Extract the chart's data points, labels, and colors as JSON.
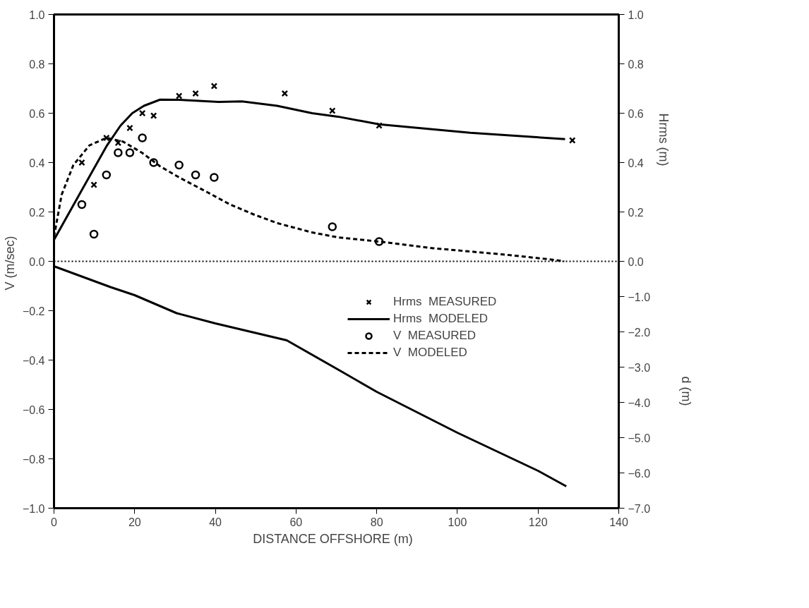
{
  "chart_data": {
    "type": "line",
    "xlabel": "DISTANCE  OFFSHORE  (m)",
    "ylabel": "V  (m/sec)",
    "y2label": "Hrms  (m)",
    "y3label": "d  (m)",
    "xlim": [
      0,
      140
    ],
    "xticks": [
      0,
      20,
      40,
      60,
      80,
      100,
      120,
      140
    ],
    "ylim": [
      -1,
      1
    ],
    "yticks": [
      {
        "value": -1,
        "label": "−1.0"
      },
      {
        "value": -0.8,
        "label": "−0.8"
      },
      {
        "value": -0.6,
        "label": "−0.6"
      },
      {
        "value": -0.4,
        "label": "−0.4"
      },
      {
        "value": -0.2,
        "label": "−0.2"
      },
      {
        "value": 0,
        "label": "0.0"
      },
      {
        "value": 0.2,
        "label": "0.2"
      },
      {
        "value": 0.4,
        "label": "0.4"
      },
      {
        "value": 0.6,
        "label": "0.6"
      },
      {
        "value": 0.8,
        "label": "0.8"
      },
      {
        "value": 1,
        "label": "1.0"
      }
    ],
    "y2lim": [
      -1,
      1
    ],
    "y2ticks": [
      {
        "value": 0,
        "label": "0.0"
      },
      {
        "value": 0.2,
        "label": "0.2"
      },
      {
        "value": 0.4,
        "label": "0.4"
      },
      {
        "value": 0.6,
        "label": "0.6"
      },
      {
        "value": 0.8,
        "label": "0.8"
      },
      {
        "value": 1,
        "label": "1.0"
      }
    ],
    "y3lim": [
      -7,
      7
    ],
    "y3ticks": [
      {
        "value": -7,
        "label": "−7.0"
      },
      {
        "value": -6,
        "label": "−6.0"
      },
      {
        "value": -5,
        "label": "−5.0"
      },
      {
        "value": -4,
        "label": "−4.0"
      },
      {
        "value": -3,
        "label": "−3.0"
      },
      {
        "value": -2,
        "label": "−2.0"
      },
      {
        "value": -1,
        "label": "−1.0"
      }
    ],
    "grid": false,
    "legend": "center right",
    "ref_lines": [
      {
        "axis": "y",
        "value": 0,
        "color": "#000000",
        "line_style": "dotted"
      }
    ],
    "series": [
      {
        "name": "Hrms  MEASURED",
        "type": "scatter",
        "marker": "cross",
        "axis": "y2",
        "color": "#000000",
        "x": [
          6.9,
          9.9,
          13.0,
          15.9,
          18.8,
          21.9,
          24.7,
          31.0,
          35.1,
          39.7,
          57.2,
          69.0,
          80.6,
          128.5
        ],
        "values": [
          0.4,
          0.31,
          0.5,
          0.48,
          0.54,
          0.6,
          0.59,
          0.67,
          0.68,
          0.71,
          0.68,
          0.61,
          0.55,
          0.49
        ]
      },
      {
        "name": "Hrms  MODELED",
        "type": "line",
        "line_style": "solid",
        "axis": "y2",
        "color": "#000000",
        "x": [
          0,
          6.6,
          13.0,
          16.5,
          19.4,
          22.3,
          26.3,
          31,
          40.8,
          46.6,
          55.3,
          64,
          70.4,
          80.6,
          103.2,
          126.7
        ],
        "values": [
          0.087,
          0.28,
          0.466,
          0.55,
          0.6,
          0.63,
          0.655,
          0.654,
          0.646,
          0.648,
          0.63,
          0.6,
          0.586,
          0.555,
          0.521,
          0.495
        ]
      },
      {
        "name": "V  MEASURED",
        "type": "scatter",
        "marker": "circle",
        "color": "#000000",
        "x": [
          6.9,
          9.9,
          13.0,
          15.9,
          18.8,
          21.9,
          24.7,
          31.0,
          35.1,
          39.7,
          69.0,
          80.6
        ],
        "values": [
          0.23,
          0.11,
          0.35,
          0.44,
          0.44,
          0.5,
          0.4,
          0.39,
          0.35,
          0.34,
          0.14,
          0.08
        ]
      },
      {
        "name": "V  MODELED",
        "type": "line",
        "line_style": "dashed",
        "color": "#000000",
        "x": [
          0,
          1.9,
          4.8,
          8.8,
          13,
          17.1,
          21.8,
          26.3,
          31,
          38,
          43.7,
          49.5,
          55.3,
          64,
          70.4,
          80.6,
          94,
          111.3,
          122.9,
          126.5
        ],
        "values": [
          0.1,
          0.27,
          0.39,
          0.47,
          0.5,
          0.485,
          0.44,
          0.385,
          0.34,
          0.28,
          0.23,
          0.19,
          0.155,
          0.117,
          0.097,
          0.08,
          0.053,
          0.028,
          0.008,
          0.0
        ]
      },
      {
        "line_style": "solid",
        "axis": "y3",
        "color": "#000000",
        "x": [
          0,
          14,
          20,
          30.4,
          40,
          57.7,
          70.9,
          80,
          100,
          120,
          127
        ],
        "values": [
          -0.14,
          -0.73,
          -0.96,
          -1.47,
          -1.76,
          -2.24,
          -3.1,
          -3.7,
          -4.86,
          -5.94,
          -6.38
        ]
      }
    ]
  }
}
